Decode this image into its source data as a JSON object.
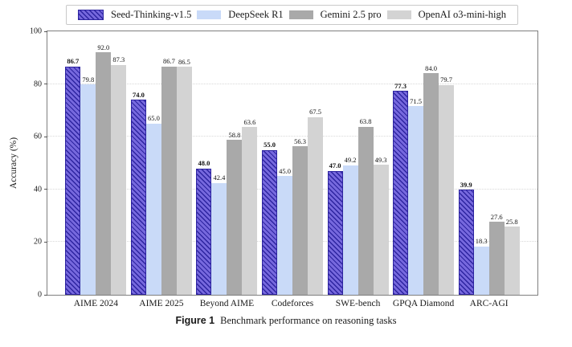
{
  "figure": {
    "caption_label": "Figure 1",
    "caption_text": "Benchmark performance on reasoning tasks"
  },
  "chart_data": {
    "type": "bar",
    "title": "",
    "xlabel": "",
    "ylabel": "Accuracy (%)",
    "ylim": [
      0,
      100
    ],
    "yticks": [
      0,
      20,
      40,
      60,
      80,
      100
    ],
    "grid": "horizontal dotted at 20,40,60,80",
    "legend_position": "top-center",
    "categories": [
      "AIME 2024",
      "AIME 2025",
      "Beyond AIME",
      "Codeforces",
      "SWE-bench",
      "GPQA Diamond",
      "ARC-AGI"
    ],
    "series": [
      {
        "name": "Seed-Thinking-v1.5",
        "color": "#7668dd",
        "hatch": "//",
        "hatch_color": "#2d24a0",
        "bold_labels": true,
        "values": [
          86.7,
          74.0,
          48.0,
          55.0,
          47.0,
          77.3,
          39.9
        ]
      },
      {
        "name": "DeepSeek R1",
        "color": "#c9daf8",
        "hatch": "",
        "hatch_color": "",
        "bold_labels": false,
        "values": [
          79.8,
          65.0,
          42.4,
          45.0,
          49.2,
          71.5,
          18.3
        ]
      },
      {
        "name": "Gemini 2.5 pro",
        "color": "#a9a9a9",
        "hatch": "",
        "hatch_color": "",
        "bold_labels": false,
        "values": [
          92.0,
          86.7,
          58.8,
          56.3,
          63.8,
          84.0,
          27.6
        ]
      },
      {
        "name": "OpenAI o3-mini-high",
        "color": "#d3d3d3",
        "hatch": "",
        "hatch_color": "",
        "bold_labels": false,
        "values": [
          87.3,
          86.5,
          63.6,
          67.5,
          49.3,
          79.7,
          25.8
        ]
      }
    ]
  },
  "colors": {
    "frame": "#7f7f7f",
    "grid": "#d8d8d8",
    "legend_border": "#c9c9c9"
  }
}
